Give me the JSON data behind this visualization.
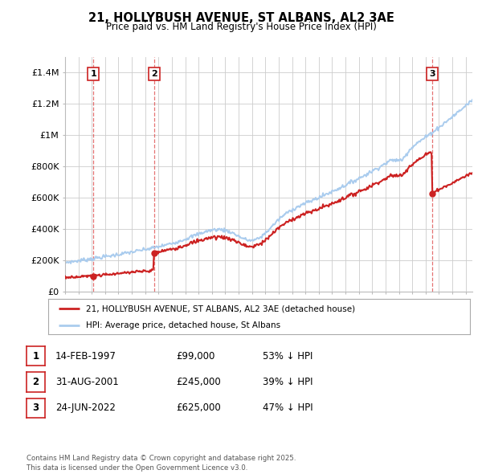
{
  "title": "21, HOLLYBUSH AVENUE, ST ALBANS, AL2 3AE",
  "subtitle": "Price paid vs. HM Land Registry's House Price Index (HPI)",
  "bg_color": "#ffffff",
  "plot_bg_color": "#ffffff",
  "grid_color": "#cccccc",
  "sale_dates": [
    1997.12,
    2001.66,
    2022.48
  ],
  "sale_prices": [
    99000,
    245000,
    625000
  ],
  "sale_labels": [
    "1",
    "2",
    "3"
  ],
  "hpi_line_color": "#aaccee",
  "sale_line_color": "#cc2222",
  "legend_entries": [
    "21, HOLLYBUSH AVENUE, ST ALBANS, AL2 3AE (detached house)",
    "HPI: Average price, detached house, St Albans"
  ],
  "transactions": [
    {
      "label": "1",
      "date": "14-FEB-1997",
      "price": "£99,000",
      "note": "53% ↓ HPI"
    },
    {
      "label": "2",
      "date": "31-AUG-2001",
      "price": "£245,000",
      "note": "39% ↓ HPI"
    },
    {
      "label": "3",
      "date": "24-JUN-2022",
      "price": "£625,000",
      "note": "47% ↓ HPI"
    }
  ],
  "footnote": "Contains HM Land Registry data © Crown copyright and database right 2025.\nThis data is licensed under the Open Government Licence v3.0.",
  "ylim": [
    0,
    1500000
  ],
  "yticks": [
    0,
    200000,
    400000,
    600000,
    800000,
    1000000,
    1200000,
    1400000
  ],
  "ytick_labels": [
    "£0",
    "£200K",
    "£400K",
    "£600K",
    "£800K",
    "£1M",
    "£1.2M",
    "£1.4M"
  ],
  "xlim": [
    1995,
    2025.5
  ],
  "xticks": [
    1995,
    1996,
    1997,
    1998,
    1999,
    2000,
    2001,
    2002,
    2003,
    2004,
    2005,
    2006,
    2007,
    2008,
    2009,
    2010,
    2011,
    2012,
    2013,
    2014,
    2015,
    2016,
    2017,
    2018,
    2019,
    2020,
    2021,
    2022,
    2023,
    2024,
    2025
  ]
}
